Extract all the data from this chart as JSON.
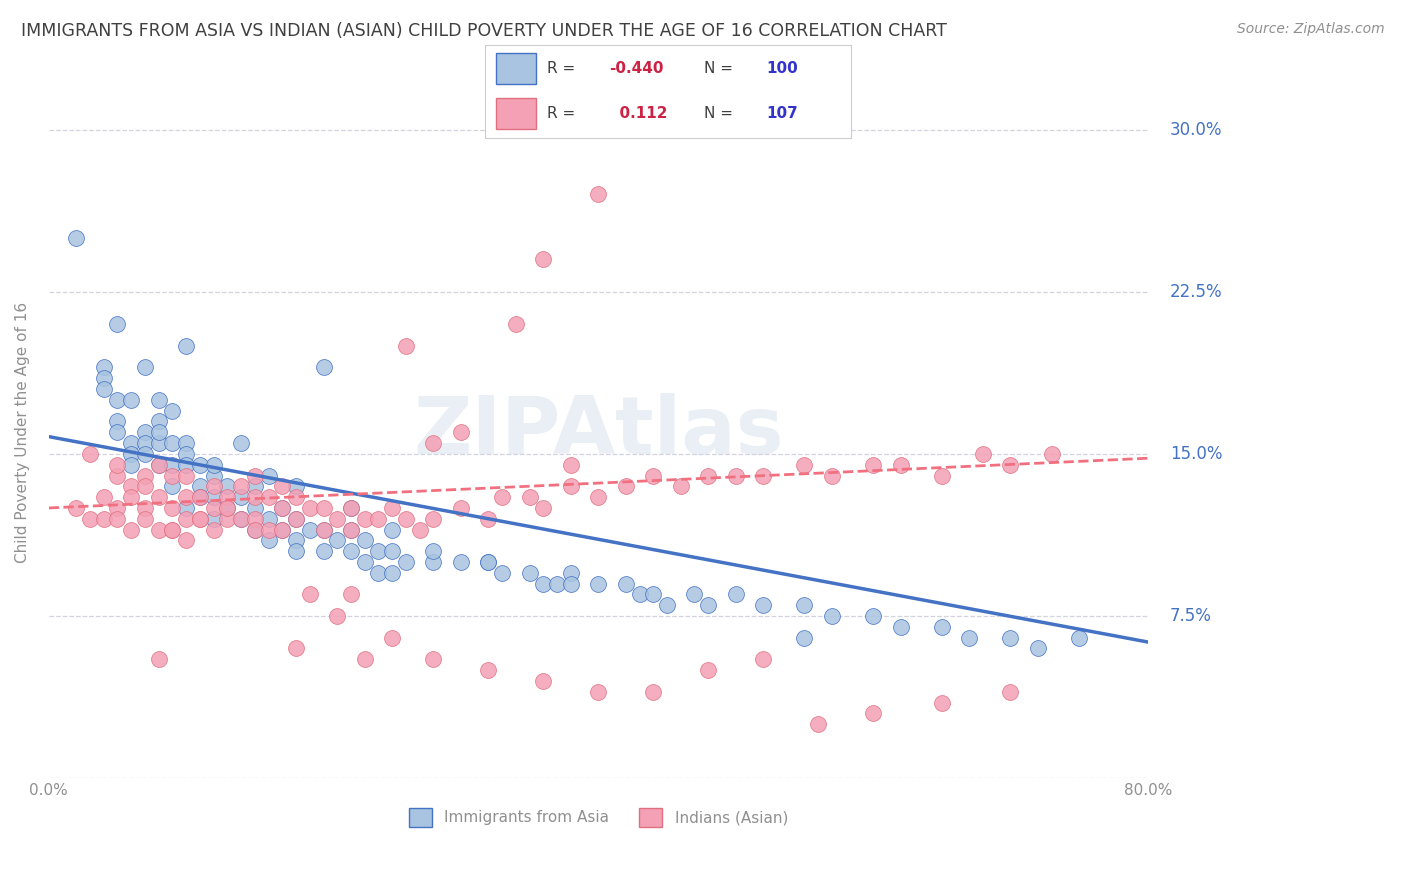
{
  "title": "IMMIGRANTS FROM ASIA VS INDIAN (ASIAN) CHILD POVERTY UNDER THE AGE OF 16 CORRELATION CHART",
  "source": "Source: ZipAtlas.com",
  "ylabel": "Child Poverty Under the Age of 16",
  "xlim": [
    0.0,
    0.8
  ],
  "ylim": [
    0.0,
    0.32
  ],
  "yticks": [
    0.0,
    0.075,
    0.15,
    0.225,
    0.3
  ],
  "ytick_labels": [
    "",
    "7.5%",
    "15.0%",
    "22.5%",
    "30.0%"
  ],
  "xticks": [
    0.0,
    0.2,
    0.4,
    0.6,
    0.8
  ],
  "xtick_labels": [
    "0.0%",
    "",
    "",
    "",
    "80.0%"
  ],
  "blue_R": -0.44,
  "blue_N": 100,
  "pink_R": 0.112,
  "pink_N": 107,
  "blue_color": "#a8c4e0",
  "pink_color": "#f4a0b5",
  "blue_edge_color": "#4472c4",
  "pink_edge_color": "#e07080",
  "blue_line_color": "#4472c4",
  "pink_line_color": "#f07080",
  "background_color": "#ffffff",
  "grid_color": "#c8c8d8",
  "title_color": "#404040",
  "axis_label_color": "#909090",
  "legend_R_color": "#cc2244",
  "legend_N_color": "#3333cc",
  "right_axis_color": "#4472c4",
  "blue_scatter_x": [
    0.02,
    0.04,
    0.04,
    0.05,
    0.05,
    0.05,
    0.06,
    0.06,
    0.06,
    0.07,
    0.07,
    0.07,
    0.08,
    0.08,
    0.08,
    0.08,
    0.09,
    0.09,
    0.09,
    0.1,
    0.1,
    0.1,
    0.1,
    0.11,
    0.11,
    0.11,
    0.12,
    0.12,
    0.12,
    0.13,
    0.13,
    0.14,
    0.14,
    0.15,
    0.15,
    0.15,
    0.16,
    0.16,
    0.17,
    0.17,
    0.18,
    0.18,
    0.18,
    0.19,
    0.2,
    0.2,
    0.21,
    0.22,
    0.22,
    0.23,
    0.23,
    0.24,
    0.24,
    0.25,
    0.25,
    0.26,
    0.28,
    0.3,
    0.32,
    0.33,
    0.35,
    0.36,
    0.37,
    0.38,
    0.4,
    0.42,
    0.43,
    0.44,
    0.47,
    0.48,
    0.5,
    0.52,
    0.55,
    0.57,
    0.6,
    0.62,
    0.65,
    0.67,
    0.7,
    0.72,
    0.75,
    0.04,
    0.06,
    0.07,
    0.08,
    0.09,
    0.12,
    0.14,
    0.16,
    0.18,
    0.22,
    0.25,
    0.28,
    0.32,
    0.38,
    0.45,
    0.55,
    0.05,
    0.1,
    0.2
  ],
  "blue_scatter_y": [
    0.25,
    0.19,
    0.185,
    0.175,
    0.165,
    0.16,
    0.155,
    0.15,
    0.145,
    0.16,
    0.155,
    0.15,
    0.175,
    0.165,
    0.155,
    0.145,
    0.155,
    0.145,
    0.135,
    0.155,
    0.15,
    0.145,
    0.125,
    0.145,
    0.135,
    0.13,
    0.14,
    0.13,
    0.12,
    0.135,
    0.125,
    0.13,
    0.12,
    0.135,
    0.125,
    0.115,
    0.12,
    0.11,
    0.125,
    0.115,
    0.12,
    0.11,
    0.105,
    0.115,
    0.115,
    0.105,
    0.11,
    0.115,
    0.105,
    0.11,
    0.1,
    0.105,
    0.095,
    0.105,
    0.095,
    0.1,
    0.1,
    0.1,
    0.1,
    0.095,
    0.095,
    0.09,
    0.09,
    0.095,
    0.09,
    0.09,
    0.085,
    0.085,
    0.085,
    0.08,
    0.085,
    0.08,
    0.08,
    0.075,
    0.075,
    0.07,
    0.07,
    0.065,
    0.065,
    0.06,
    0.065,
    0.18,
    0.175,
    0.19,
    0.16,
    0.17,
    0.145,
    0.155,
    0.14,
    0.135,
    0.125,
    0.115,
    0.105,
    0.1,
    0.09,
    0.08,
    0.065,
    0.21,
    0.2,
    0.19
  ],
  "pink_scatter_x": [
    0.02,
    0.03,
    0.04,
    0.04,
    0.05,
    0.05,
    0.05,
    0.06,
    0.06,
    0.06,
    0.07,
    0.07,
    0.07,
    0.08,
    0.08,
    0.08,
    0.09,
    0.09,
    0.09,
    0.1,
    0.1,
    0.1,
    0.1,
    0.11,
    0.11,
    0.12,
    0.12,
    0.12,
    0.13,
    0.13,
    0.14,
    0.14,
    0.15,
    0.15,
    0.15,
    0.16,
    0.16,
    0.17,
    0.17,
    0.18,
    0.18,
    0.19,
    0.2,
    0.2,
    0.21,
    0.22,
    0.22,
    0.23,
    0.24,
    0.25,
    0.26,
    0.27,
    0.28,
    0.3,
    0.32,
    0.33,
    0.35,
    0.36,
    0.38,
    0.4,
    0.42,
    0.44,
    0.46,
    0.48,
    0.5,
    0.52,
    0.55,
    0.57,
    0.6,
    0.62,
    0.65,
    0.68,
    0.7,
    0.73,
    0.03,
    0.05,
    0.07,
    0.09,
    0.11,
    0.13,
    0.15,
    0.17,
    0.19,
    0.21,
    0.23,
    0.25,
    0.28,
    0.32,
    0.36,
    0.4,
    0.44,
    0.48,
    0.52,
    0.56,
    0.6,
    0.65,
    0.7,
    0.36,
    0.4,
    0.18,
    0.22,
    0.26,
    0.28,
    0.3,
    0.34,
    0.38,
    0.08
  ],
  "pink_scatter_y": [
    0.125,
    0.12,
    0.13,
    0.12,
    0.14,
    0.125,
    0.12,
    0.135,
    0.13,
    0.115,
    0.14,
    0.125,
    0.12,
    0.145,
    0.13,
    0.115,
    0.14,
    0.125,
    0.115,
    0.14,
    0.13,
    0.12,
    0.11,
    0.13,
    0.12,
    0.135,
    0.125,
    0.115,
    0.13,
    0.12,
    0.135,
    0.12,
    0.13,
    0.12,
    0.115,
    0.13,
    0.115,
    0.125,
    0.115,
    0.13,
    0.12,
    0.125,
    0.125,
    0.115,
    0.12,
    0.125,
    0.115,
    0.12,
    0.12,
    0.125,
    0.12,
    0.115,
    0.12,
    0.125,
    0.12,
    0.13,
    0.13,
    0.125,
    0.135,
    0.13,
    0.135,
    0.14,
    0.135,
    0.14,
    0.14,
    0.14,
    0.145,
    0.14,
    0.145,
    0.145,
    0.14,
    0.15,
    0.145,
    0.15,
    0.15,
    0.145,
    0.135,
    0.115,
    0.12,
    0.125,
    0.14,
    0.135,
    0.085,
    0.075,
    0.055,
    0.065,
    0.055,
    0.05,
    0.045,
    0.04,
    0.04,
    0.05,
    0.055,
    0.025,
    0.03,
    0.035,
    0.04,
    0.24,
    0.27,
    0.06,
    0.085,
    0.2,
    0.155,
    0.16,
    0.21,
    0.145,
    0.055
  ],
  "blue_trend_x": [
    0.0,
    0.8
  ],
  "blue_trend_y": [
    0.158,
    0.063
  ],
  "pink_trend_x": [
    0.0,
    0.8
  ],
  "pink_trend_y": [
    0.125,
    0.148
  ]
}
